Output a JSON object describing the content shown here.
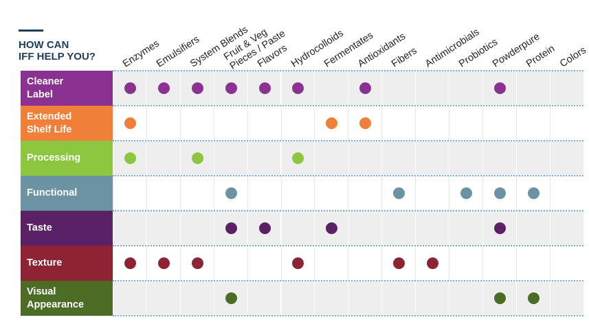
{
  "heading": {
    "line1": "HOW CAN",
    "line2": "IFF HELP YOU?"
  },
  "columns": [
    {
      "lines": [
        "Enzymes"
      ]
    },
    {
      "lines": [
        "Emulsifiers"
      ]
    },
    {
      "lines": [
        "System Blends"
      ]
    },
    {
      "lines": [
        "Fruit & Veg",
        "Pieces / Paste"
      ]
    },
    {
      "lines": [
        "Flavors"
      ]
    },
    {
      "lines": [
        "Hydrocolloids"
      ]
    },
    {
      "lines": [
        "Fermentates"
      ]
    },
    {
      "lines": [
        "Antioxidants"
      ]
    },
    {
      "lines": [
        "Fibers"
      ]
    },
    {
      "lines": [
        "Antimicrobials"
      ]
    },
    {
      "lines": [
        "Probiotics"
      ]
    },
    {
      "lines": [
        "Powderpure"
      ]
    },
    {
      "lines": [
        "Protein"
      ]
    },
    {
      "lines": [
        "Colors"
      ]
    }
  ],
  "rows": [
    {
      "lines": [
        "Cleaner",
        "Label"
      ],
      "color": "#8b3191",
      "dots": [
        0,
        1,
        2,
        3,
        4,
        5,
        7,
        11
      ]
    },
    {
      "lines": [
        "Extended",
        "Shelf Life"
      ],
      "color": "#f07f3a",
      "dots": [
        0,
        6,
        7
      ]
    },
    {
      "lines": [
        "Processing"
      ],
      "color": "#8cc63e",
      "dots": [
        0,
        2,
        5
      ]
    },
    {
      "lines": [
        "Functional"
      ],
      "color": "#6b93a3",
      "dots": [
        3,
        8,
        10,
        11,
        12
      ]
    },
    {
      "lines": [
        "Taste"
      ],
      "color": "#5b2065",
      "dots": [
        3,
        4,
        6,
        11
      ]
    },
    {
      "lines": [
        "Texture"
      ],
      "color": "#8e2433",
      "dots": [
        0,
        1,
        2,
        5,
        8,
        9
      ]
    },
    {
      "lines": [
        "Visual",
        "Appearance"
      ],
      "color": "#4c6b24",
      "dots": [
        3,
        11,
        12
      ]
    }
  ]
}
